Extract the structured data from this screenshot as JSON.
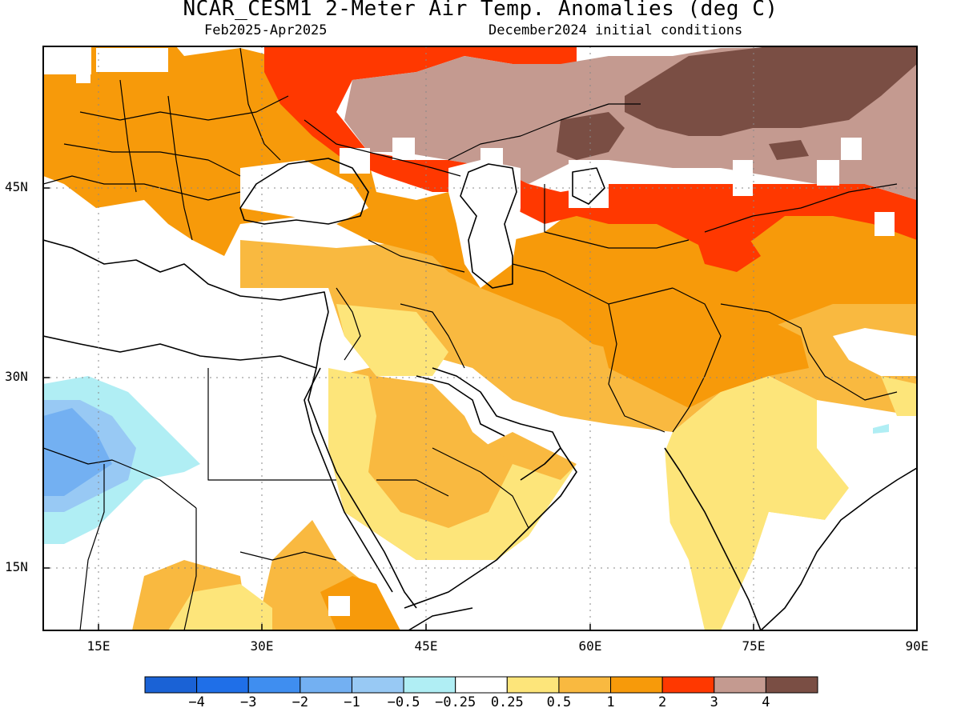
{
  "header": {
    "title": "NCAR_CESM1 2-Meter Air Temp. Anomalies (deg C)",
    "period": "Feb2025-Apr2025",
    "init": "December2024 initial conditions"
  },
  "axes": {
    "lat_labels": [
      "45N",
      "30N",
      "15N"
    ],
    "lon_labels": [
      "15E",
      "30E",
      "45E",
      "60E",
      "75E",
      "90E"
    ],
    "lat_values": [
      45,
      30,
      15
    ],
    "lon_values": [
      15,
      30,
      45,
      60,
      75,
      90
    ],
    "grid": "dotted"
  },
  "colorbar": {
    "colors": [
      "#1a62d6",
      "#1f6fe8",
      "#3f8ef0",
      "#73b0f2",
      "#98c9f4",
      "#b0eef4",
      "#ffffff",
      "#fde57a",
      "#f9b940",
      "#f79a0a",
      "#ff3800",
      "#c49a90",
      "#7a4e44"
    ],
    "labels": [
      "-4",
      "-3",
      "-2",
      "-1",
      "-0.5",
      "-0.25",
      "0.25",
      "0.5",
      "1",
      "2",
      "3",
      "4"
    ]
  },
  "map": {
    "region": "Middle East, Central and South Asia",
    "extent": {
      "lon": [
        10,
        90
      ],
      "lat": [
        10,
        56
      ]
    },
    "palette": {
      "land_outline": "#000000",
      "political_border": "#000000",
      "grid": "#888888"
    }
  }
}
